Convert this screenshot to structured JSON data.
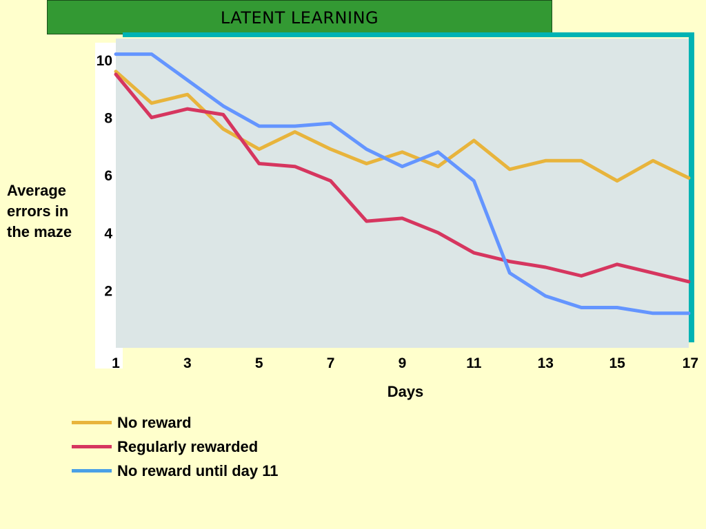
{
  "title": "LATENT LEARNING",
  "colors": {
    "background": "#ffffcc",
    "title_bar": "#339933",
    "plot_area": "#dce6e6",
    "frame_accent": "#00b3b3",
    "no_reward": "#e8b43c",
    "regularly_rewarded": "#d6365f",
    "no_reward_until_11": "#6495ff"
  },
  "chart_data": {
    "type": "line",
    "title": "LATENT LEARNING",
    "xlabel": "Days",
    "ylabel": "Average errors in the maze",
    "xlim": [
      1,
      17
    ],
    "ylim": [
      0,
      10.2
    ],
    "x_ticks": [
      "1",
      "3",
      "5",
      "7",
      "9",
      "11",
      "13",
      "15",
      "17"
    ],
    "y_ticks": [
      "2",
      "4",
      "6",
      "8",
      "10"
    ],
    "grid": false,
    "legend_position": "bottom-left",
    "x": [
      1,
      2,
      3,
      4,
      5,
      6,
      7,
      8,
      9,
      10,
      11,
      12,
      13,
      14,
      15,
      16,
      17
    ],
    "series": [
      {
        "name": "No reward",
        "color": "#e8b43c",
        "values": [
          9.6,
          8.5,
          8.8,
          7.6,
          6.9,
          7.5,
          6.9,
          6.4,
          6.8,
          6.3,
          7.2,
          6.2,
          6.5,
          6.5,
          5.8,
          6.5,
          5.9
        ]
      },
      {
        "name": "Regularly rewarded",
        "color": "#d6365f",
        "values": [
          9.5,
          8.0,
          8.3,
          8.1,
          6.4,
          6.3,
          5.8,
          4.4,
          4.5,
          4.0,
          3.3,
          3.0,
          2.8,
          2.5,
          2.9,
          2.6,
          2.3
        ]
      },
      {
        "name": "No reward until day 11",
        "color": "#6495ff",
        "values": [
          10.2,
          10.2,
          9.3,
          8.4,
          7.7,
          7.7,
          7.8,
          6.9,
          6.3,
          6.8,
          5.8,
          2.6,
          1.8,
          1.4,
          1.4,
          1.2,
          1.2
        ]
      }
    ]
  }
}
